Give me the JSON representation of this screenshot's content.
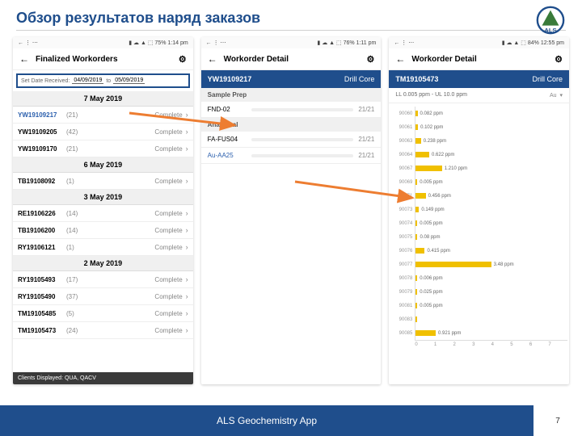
{
  "slide": {
    "title": "Обзор результатов наряд заказов",
    "footer": "ALS Geochemistry App",
    "page": "7"
  },
  "logo": {
    "text": "ALS",
    "triangle_color": "#3a7b3a",
    "ring_color": "#1f4e8c"
  },
  "colors": {
    "accent": "#1f4e8c",
    "bar": "#f0c000",
    "arrow": "#ed7d31"
  },
  "phone1": {
    "status": {
      "left": "← ⋮ ⋯",
      "sig": "▮ ☁ ▲ ⬚ 75%",
      "time": "1:14 pm"
    },
    "title": "Finalized Workorders",
    "filter": {
      "label": "Set Date Received:",
      "from": "04/09/2019",
      "to_lbl": "to",
      "to": "05/09/2019"
    },
    "clients": "Clients Displayed:  QUA, QACV",
    "groups": [
      {
        "date": "7 May 2019",
        "rows": [
          {
            "id": "YW19109217",
            "n": "(21)",
            "s": "Complete",
            "hl": true
          },
          {
            "id": "YW19109205",
            "n": "(42)",
            "s": "Complete"
          },
          {
            "id": "YW19109170",
            "n": "(21)",
            "s": "Complete"
          }
        ]
      },
      {
        "date": "6 May 2019",
        "rows": [
          {
            "id": "TB19108092",
            "n": "(1)",
            "s": "Complete"
          }
        ]
      },
      {
        "date": "3 May 2019",
        "rows": [
          {
            "id": "RE19106226",
            "n": "(14)",
            "s": "Complete"
          },
          {
            "id": "TB19106200",
            "n": "(14)",
            "s": "Complete"
          },
          {
            "id": "RY19106121",
            "n": "(1)",
            "s": "Complete"
          }
        ]
      },
      {
        "date": "2 May 2019",
        "rows": [
          {
            "id": "RY19105493",
            "n": "(17)",
            "s": "Complete"
          },
          {
            "id": "RY19105490",
            "n": "(37)",
            "s": "Complete"
          },
          {
            "id": "TM19105485",
            "n": "(5)",
            "s": "Complete"
          },
          {
            "id": "TM19105473",
            "n": "(24)",
            "s": "Complete"
          }
        ]
      }
    ]
  },
  "phone2": {
    "status": {
      "left": "← ⋮ ⋯",
      "sig": "▮ ☁ ▲ ⬚ 76%",
      "time": "1:11 pm"
    },
    "title": "Workorder Detail",
    "order_id": "YW19109217",
    "order_type": "Drill Core",
    "sections": [
      {
        "label": "Sample Prep",
        "rows": [
          {
            "name": "FND-02",
            "count": "21/21",
            "pct": 100
          }
        ]
      },
      {
        "label": "Analytical",
        "rows": [
          {
            "name": "FA-FUS04",
            "count": "21/21",
            "pct": 100
          },
          {
            "name": "Au-AA25",
            "count": "21/21",
            "pct": 100,
            "hl": true
          }
        ]
      }
    ]
  },
  "phone3": {
    "status": {
      "left": "← ⋮ ⋯",
      "sig": "▮ ☁ ▲ ⬚ 84%",
      "time": "12:55 pm"
    },
    "title": "Workorder Detail",
    "order_id": "TM19105473",
    "order_type": "Drill Core",
    "limits": "LL 0.005 ppm - UL 10.0 ppm",
    "element": "Au",
    "xmax": 7,
    "xticks": [
      "0",
      "1",
      "2",
      "3",
      "4",
      "5",
      "6",
      "7"
    ],
    "bars": [
      {
        "y": "90060",
        "v": 0.082,
        "lbl": "0.082 ppm"
      },
      {
        "y": "90061",
        "v": 0.102,
        "lbl": "0.102 ppm"
      },
      {
        "y": "90063",
        "v": 0.238,
        "lbl": "0.238 ppm"
      },
      {
        "y": "90064",
        "v": 0.622,
        "lbl": "0.622 ppm"
      },
      {
        "y": "90067",
        "v": 1.21,
        "lbl": "1.210 ppm"
      },
      {
        "y": "90069",
        "v": 0.005,
        "lbl": "0.005 ppm"
      },
      {
        "y": "90071",
        "v": 0.456,
        "lbl": "0.456 ppm"
      },
      {
        "y": "90073",
        "v": 0.149,
        "lbl": "0.149 ppm"
      },
      {
        "y": "90074",
        "v": 0.005,
        "lbl": "0.005 ppm"
      },
      {
        "y": "90075",
        "v": 0.08,
        "lbl": "0.08 ppm"
      },
      {
        "y": "90076",
        "v": 0.415,
        "lbl": "0.415 ppm"
      },
      {
        "y": "90077",
        "v": 3.48,
        "lbl": "3.48 ppm"
      },
      {
        "y": "90078",
        "v": 0.006,
        "lbl": "0.006 ppm"
      },
      {
        "y": "90079",
        "v": 0.025,
        "lbl": "0.025 ppm"
      },
      {
        "y": "90081",
        "v": 0.005,
        "lbl": "0.005 ppm"
      },
      {
        "y": "90083",
        "v": 0.02,
        "lbl": ""
      },
      {
        "y": "90085",
        "v": 0.921,
        "lbl": "0.921 ppm"
      }
    ]
  }
}
